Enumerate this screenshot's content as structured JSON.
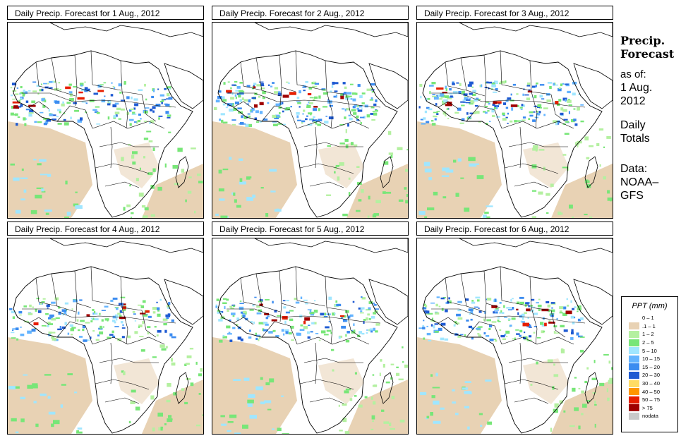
{
  "panels": [
    {
      "title": "Daily Precip. Forecast for  1 Aug., 2012",
      "intensity": 0.85
    },
    {
      "title": "Daily Precip. Forecast for  2 Aug., 2012",
      "intensity": 1.0
    },
    {
      "title": "Daily Precip. Forecast for  3 Aug., 2012",
      "intensity": 0.95
    },
    {
      "title": "Daily Precip. Forecast for  4 Aug., 2012",
      "intensity": 0.75
    },
    {
      "title": "Daily Precip. Forecast for  5 Aug., 2012",
      "intensity": 0.8
    },
    {
      "title": "Daily Precip. Forecast for  6 Aug., 2012",
      "intensity": 0.9
    }
  ],
  "side": {
    "title_line1": "Precip.",
    "title_line2": "Forecast",
    "asof_line1": "as of:",
    "asof_line2": "1 Aug.",
    "asof_line3": "2012",
    "daily_line1": "Daily",
    "daily_line2": "Totals",
    "data_line1": "Data:",
    "data_line2": "NOAA–",
    "data_line3": "GFS"
  },
  "legend": {
    "title": "PPT (mm)",
    "items": [
      {
        "label": "0 – 1",
        "color": "#ffffff"
      },
      {
        "label": ".1 – 1",
        "color": "#e8d2b4"
      },
      {
        "label": "1 – 2",
        "color": "#b4f0a0"
      },
      {
        "label": "2 – 5",
        "color": "#78e678"
      },
      {
        "label": "5 – 10",
        "color": "#a0e6ff"
      },
      {
        "label": "10 – 15",
        "color": "#64b4ff"
      },
      {
        "label": "15 – 20",
        "color": "#3c8cf0"
      },
      {
        "label": "20 – 30",
        "color": "#1e5ad2"
      },
      {
        "label": "30 – 40",
        "color": "#ffdc64"
      },
      {
        "label": "40 – 50",
        "color": "#ff9600"
      },
      {
        "label": "50 – 75",
        "color": "#e61e00"
      },
      {
        "label": "> 75",
        "color": "#a00000"
      },
      {
        "label": "nodata",
        "color": "#c8c8c8"
      }
    ]
  },
  "colors": {
    "dry": "#e8d2b4",
    "light": "#b4f0a0",
    "green": "#78e678",
    "cyan": "#a0e6ff",
    "blue": "#64b4ff",
    "mid": "#3c8cf0",
    "dark": "#1e5ad2",
    "heavy": "#e61e00",
    "extreme": "#a00000"
  }
}
